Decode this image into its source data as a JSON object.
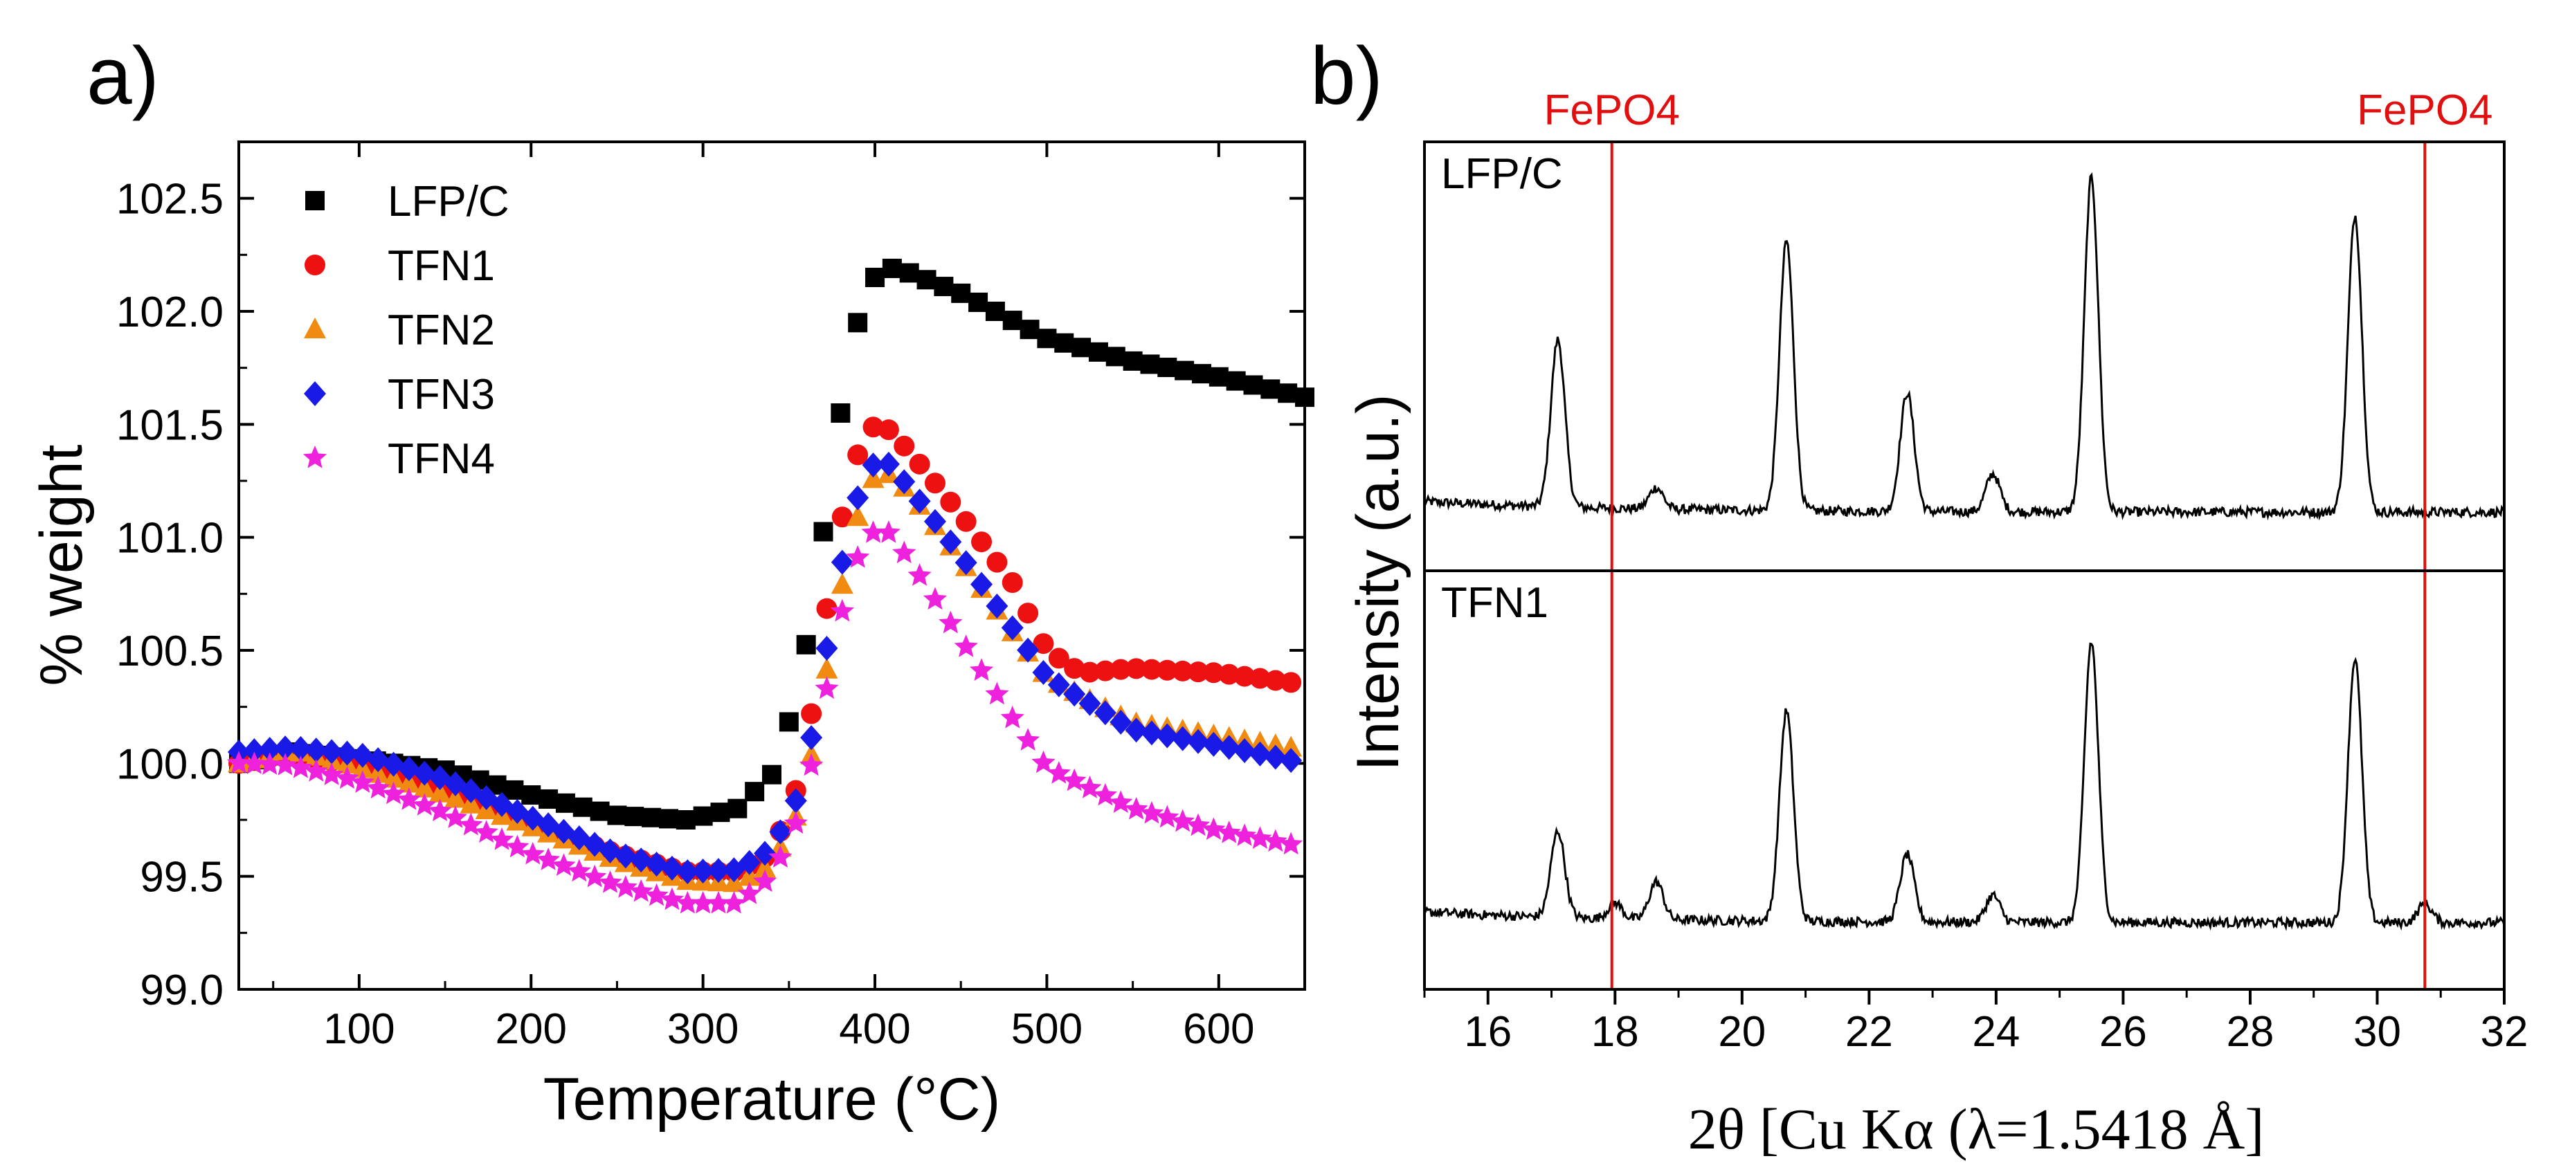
{
  "chart_data": [
    {
      "panel_label": "a)",
      "type": "scatter",
      "xlabel": "Temperature (°C)",
      "ylabel": "% weight",
      "xlim": [
        30,
        650
      ],
      "ylim": [
        99.0,
        102.75
      ],
      "x_ticks": [
        100,
        200,
        300,
        400,
        500,
        600
      ],
      "y_ticks": [
        99.0,
        99.5,
        100.0,
        100.5,
        101.0,
        101.5,
        102.0,
        102.5
      ],
      "x_tick_labels": [
        "100",
        "200",
        "300",
        "400",
        "500",
        "600"
      ],
      "y_tick_labels": [
        "99.0",
        "99.5",
        "100.0",
        "100.5",
        "101.0",
        "101.5",
        "102.0",
        "102.5"
      ],
      "legend_position": "top-left",
      "series": [
        {
          "name": "LFP/C",
          "marker": "square",
          "color": "#000000",
          "points": [
            [
              30,
              100.0
            ],
            [
              60,
              100.05
            ],
            [
              100,
              100.02
            ],
            [
              150,
              99.97
            ],
            [
              200,
              99.86
            ],
            [
              250,
              99.77
            ],
            [
              290,
              99.75
            ],
            [
              320,
              99.8
            ],
            [
              340,
              99.95
            ],
            [
              355,
              100.3
            ],
            [
              365,
              100.75
            ],
            [
              375,
              101.3
            ],
            [
              385,
              101.8
            ],
            [
              395,
              102.1
            ],
            [
              405,
              102.2
            ],
            [
              420,
              102.17
            ],
            [
              450,
              102.08
            ],
            [
              500,
              101.88
            ],
            [
              550,
              101.78
            ],
            [
              600,
              101.71
            ],
            [
              650,
              101.62
            ]
          ]
        },
        {
          "name": "TFN1",
          "marker": "circle",
          "color": "#ee1111",
          "points": [
            [
              30,
              100.0
            ],
            [
              60,
              100.04
            ],
            [
              100,
              99.99
            ],
            [
              150,
              99.88
            ],
            [
              200,
              99.73
            ],
            [
              250,
              99.6
            ],
            [
              290,
              99.52
            ],
            [
              320,
              99.52
            ],
            [
              340,
              99.6
            ],
            [
              355,
              99.9
            ],
            [
              365,
              100.3
            ],
            [
              375,
              100.85
            ],
            [
              385,
              101.25
            ],
            [
              395,
              101.48
            ],
            [
              405,
              101.5
            ],
            [
              420,
              101.38
            ],
            [
              450,
              101.1
            ],
            [
              480,
              100.8
            ],
            [
              500,
              100.5
            ],
            [
              520,
              100.4
            ],
            [
              550,
              100.42
            ],
            [
              600,
              100.4
            ],
            [
              650,
              100.35
            ]
          ]
        },
        {
          "name": "TFN2",
          "marker": "triangle",
          "color": "#f08a10",
          "points": [
            [
              30,
              100.0
            ],
            [
              60,
              100.06
            ],
            [
              100,
              99.98
            ],
            [
              150,
              99.86
            ],
            [
              200,
              99.72
            ],
            [
              250,
              99.57
            ],
            [
              290,
              99.48
            ],
            [
              320,
              99.47
            ],
            [
              340,
              99.55
            ],
            [
              355,
              99.78
            ],
            [
              365,
              100.1
            ],
            [
              375,
              100.55
            ],
            [
              385,
              100.95
            ],
            [
              395,
              101.23
            ],
            [
              405,
              101.3
            ],
            [
              420,
              101.2
            ],
            [
              450,
              100.9
            ],
            [
              480,
              100.58
            ],
            [
              500,
              100.38
            ],
            [
              550,
              100.18
            ],
            [
              600,
              100.12
            ],
            [
              650,
              100.06
            ]
          ]
        },
        {
          "name": "TFN3",
          "marker": "diamond",
          "color": "#1a1ae6",
          "points": [
            [
              30,
              100.05
            ],
            [
              60,
              100.07
            ],
            [
              100,
              100.04
            ],
            [
              150,
              99.93
            ],
            [
              200,
              99.76
            ],
            [
              250,
              99.6
            ],
            [
              290,
              99.52
            ],
            [
              320,
              99.53
            ],
            [
              340,
              99.62
            ],
            [
              355,
              99.85
            ],
            [
              365,
              100.18
            ],
            [
              375,
              100.65
            ],
            [
              385,
              101.05
            ],
            [
              395,
              101.3
            ],
            [
              405,
              101.35
            ],
            [
              420,
              101.22
            ],
            [
              450,
              100.92
            ],
            [
              480,
              100.6
            ],
            [
              500,
              100.38
            ],
            [
              550,
              100.15
            ],
            [
              600,
              100.08
            ],
            [
              650,
              100.0
            ]
          ]
        },
        {
          "name": "TFN4",
          "marker": "star",
          "color": "#ee22dd",
          "points": [
            [
              30,
              100.0
            ],
            [
              60,
              99.99
            ],
            [
              100,
              99.92
            ],
            [
              150,
              99.78
            ],
            [
              200,
              99.6
            ],
            [
              250,
              99.46
            ],
            [
              290,
              99.38
            ],
            [
              320,
              99.38
            ],
            [
              340,
              99.5
            ],
            [
              355,
              99.75
            ],
            [
              365,
              100.05
            ],
            [
              375,
              100.45
            ],
            [
              385,
              100.82
            ],
            [
              395,
              101.0
            ],
            [
              405,
              101.05
            ],
            [
              420,
              100.9
            ],
            [
              450,
              100.55
            ],
            [
              480,
              100.2
            ],
            [
              500,
              99.98
            ],
            [
              550,
              99.8
            ],
            [
              600,
              99.7
            ],
            [
              650,
              99.63
            ]
          ]
        }
      ]
    },
    {
      "panel_label": "b)",
      "type": "line",
      "xlabel": "2θ [Cu Kα (λ=1.5418 Å]",
      "ylabel": "Intensity (a.u.)",
      "xlim": [
        15,
        32
      ],
      "x_ticks": [
        16,
        18,
        20,
        22,
        24,
        26,
        28,
        30,
        32
      ],
      "x_tick_labels": [
        "16",
        "18",
        "20",
        "22",
        "24",
        "26",
        "28",
        "30",
        "32"
      ],
      "reference_lines": [
        {
          "label": "FePO4",
          "x": 17.95,
          "color": "#e01010"
        },
        {
          "label": "FePO4",
          "x": 30.75,
          "color": "#e01010"
        }
      ],
      "series": [
        {
          "name": "LFP/C",
          "baseline": 0.14,
          "peaks": [
            [
              17.1,
              0.62
            ],
            [
              18.65,
              0.08
            ],
            [
              20.7,
              1.0
            ],
            [
              22.6,
              0.44
            ],
            [
              23.95,
              0.14
            ],
            [
              25.5,
              1.24
            ],
            [
              29.65,
              1.1
            ]
          ]
        },
        {
          "name": "TFN1",
          "baseline": 0.17,
          "peaks": [
            [
              17.1,
              0.32
            ],
            [
              18.0,
              0.06
            ],
            [
              18.65,
              0.14
            ],
            [
              20.7,
              0.78
            ],
            [
              22.6,
              0.25
            ],
            [
              23.95,
              0.1
            ],
            [
              25.5,
              1.04
            ],
            [
              29.65,
              0.98
            ],
            [
              30.75,
              0.07
            ]
          ]
        }
      ]
    }
  ]
}
